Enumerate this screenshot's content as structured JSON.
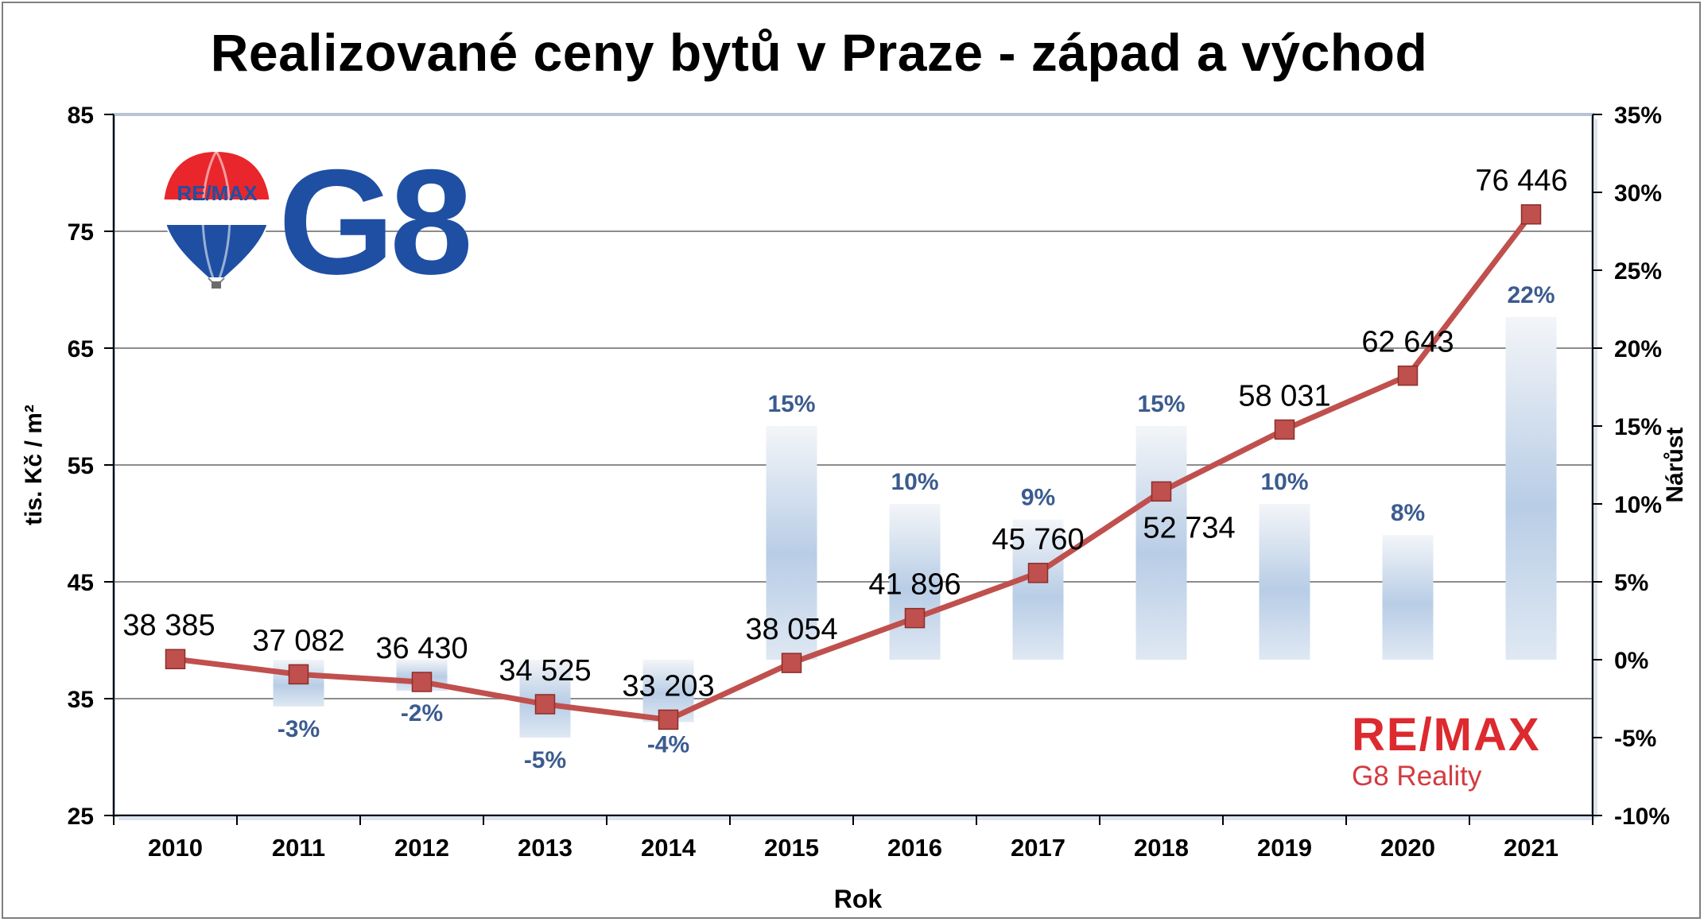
{
  "chart_data": {
    "type": "line",
    "title": "Realizované ceny bytů v Praze - západ a východ",
    "xlabel": "Rok",
    "ylabel": "tis. Kč / m²",
    "ylabel_right": "Nárůst",
    "ylim": [
      25,
      85
    ],
    "yticks": [
      "25",
      "35",
      "45",
      "55",
      "65",
      "75",
      "85"
    ],
    "ylim_right": [
      -0.1,
      0.35
    ],
    "yticks_right": [
      "-10%",
      "-5%",
      "0%",
      "5%",
      "10%",
      "15%",
      "20%",
      "25%",
      "30%",
      "35%"
    ],
    "categories": [
      "2010",
      "2011",
      "2012",
      "2013",
      "2014",
      "2015",
      "2016",
      "2017",
      "2018",
      "2019",
      "2020",
      "2021"
    ],
    "grid": true,
    "series": [
      {
        "kind": "line",
        "axis": "left",
        "values": [
          38.385,
          37.082,
          36.43,
          34.525,
          33.203,
          38.054,
          41.896,
          45.76,
          52.734,
          58.031,
          62.643,
          76.446
        ],
        "labels": [
          "38 385",
          "37 082",
          "36 430",
          "34 525",
          "33 203",
          "38 054",
          "41 896",
          "45 760",
          "52 734",
          "58 031",
          "62 643",
          "76 446"
        ],
        "color": "#c0504d"
      },
      {
        "kind": "bar",
        "axis": "right",
        "values": [
          null,
          -0.03,
          -0.02,
          -0.05,
          -0.04,
          0.15,
          0.1,
          0.09,
          0.15,
          0.1,
          0.08,
          0.22
        ],
        "labels": [
          "",
          "-3%",
          "-2%",
          "-5%",
          "-4%",
          "15%",
          "10%",
          "9%",
          "15%",
          "10%",
          "8%",
          "22%"
        ],
        "color": "#b8cde6"
      }
    ]
  },
  "logos": {
    "balloon_text": "RE/MAX",
    "g8_text": "G8",
    "brand_word": "RE/MAX",
    "brand_sub": "G8 Reality"
  },
  "colors": {
    "line": "#c0504d",
    "marker": "#c0504d",
    "bar_label": "#3b5b8f",
    "brand_red": "#dc2a2f",
    "brand_blue": "#1f4fa3"
  }
}
